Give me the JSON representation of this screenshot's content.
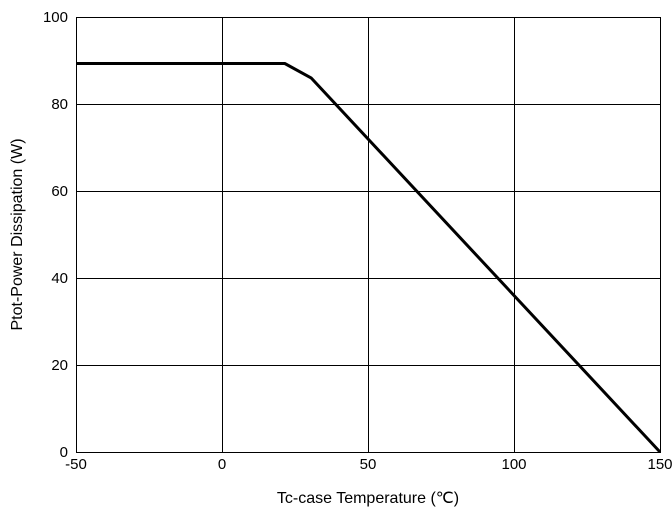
{
  "chart_data": {
    "type": "line",
    "title": "",
    "xlabel": "Tc-case Temperature (℃)",
    "ylabel": "Ptot-Power Dissipation (W)",
    "xlim": [
      -50,
      150
    ],
    "ylim": [
      0,
      100
    ],
    "x_ticks": [
      -50,
      0,
      50,
      100,
      150
    ],
    "y_ticks": [
      0,
      20,
      40,
      60,
      80,
      100
    ],
    "grid": true,
    "legend": "none",
    "series": [
      {
        "color": "#000000",
        "points": [
          {
            "x": -50,
            "y": 89.3
          },
          {
            "x": 21.5,
            "y": 89.3
          },
          {
            "x": 30.5,
            "y": 86.0
          },
          {
            "x": 150,
            "y": 0
          }
        ]
      }
    ]
  }
}
